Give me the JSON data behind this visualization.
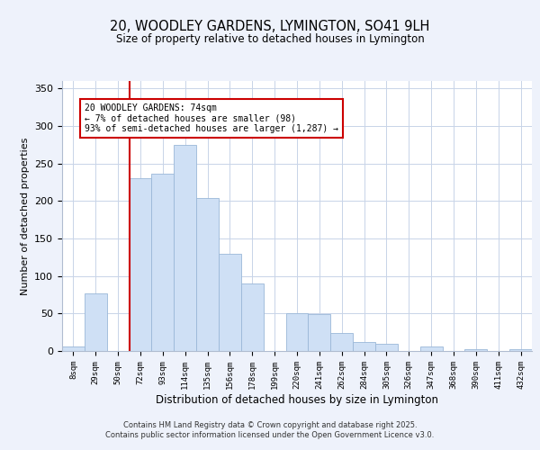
{
  "title": "20, WOODLEY GARDENS, LYMINGTON, SO41 9LH",
  "subtitle": "Size of property relative to detached houses in Lymington",
  "xlabel": "Distribution of detached houses by size in Lymington",
  "ylabel": "Number of detached properties",
  "bar_labels": [
    "8sqm",
    "29sqm",
    "50sqm",
    "72sqm",
    "93sqm",
    "114sqm",
    "135sqm",
    "156sqm",
    "178sqm",
    "199sqm",
    "220sqm",
    "241sqm",
    "262sqm",
    "284sqm",
    "305sqm",
    "326sqm",
    "347sqm",
    "368sqm",
    "390sqm",
    "411sqm",
    "432sqm"
  ],
  "bar_values": [
    6,
    77,
    0,
    230,
    237,
    275,
    204,
    130,
    90,
    0,
    50,
    49,
    24,
    12,
    10,
    0,
    6,
    0,
    3,
    0,
    2
  ],
  "bar_color": "#cfe0f5",
  "bar_edge_color": "#9ab8d8",
  "highlight_color": "#cc0000",
  "ylim": [
    0,
    360
  ],
  "yticks": [
    0,
    50,
    100,
    150,
    200,
    250,
    300,
    350
  ],
  "annotation_title": "20 WOODLEY GARDENS: 74sqm",
  "annotation_line1": "← 7% of detached houses are smaller (98)",
  "annotation_line2": "93% of semi-detached houses are larger (1,287) →",
  "footer1": "Contains HM Land Registry data © Crown copyright and database right 2025.",
  "footer2": "Contains public sector information licensed under the Open Government Licence v3.0.",
  "bg_color": "#eef2fb",
  "plot_bg_color": "#ffffff",
  "grid_color": "#c8d4e8"
}
